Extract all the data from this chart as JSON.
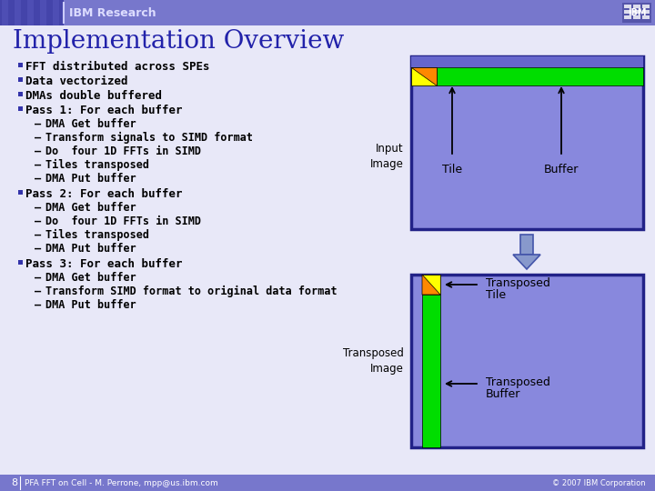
{
  "slide_bg": "#e8e8f8",
  "header_bg": "#7777cc",
  "title": "Implementation Overview",
  "title_color": "#2222aa",
  "header_text": "IBM Research",
  "header_text_color": "#ddddff",
  "footer_text": "PFA FFT on Cell - M. Perrone, mpp@us.ibm.com",
  "footer_right": "© 2007 IBM Corporation",
  "bullet_color": "#3333aa",
  "sub_bullets_pass1": [
    "DMA Get buffer",
    "Transform signals to SIMD format",
    "Do  four 1D FFTs in SIMD",
    "Tiles transposed",
    "DMA Put buffer"
  ],
  "sub_bullets_pass2": [
    "DMA Get buffer",
    "Do  four 1D FFTs in SIMD",
    "Tiles transposed",
    "DMA Put buffer"
  ],
  "sub_bullets_pass3": [
    "DMA Get buffer",
    "Transform SIMD format to original data format",
    "DMA Put buffer"
  ],
  "diagram_bg": "#8888dd",
  "diagram_border": "#222288",
  "green_bar": "#00dd00",
  "orange_tri": "#ff8800",
  "yellow_sq": "#ffff00",
  "arrow_color": "#8899cc",
  "arrow_border": "#4455aa"
}
